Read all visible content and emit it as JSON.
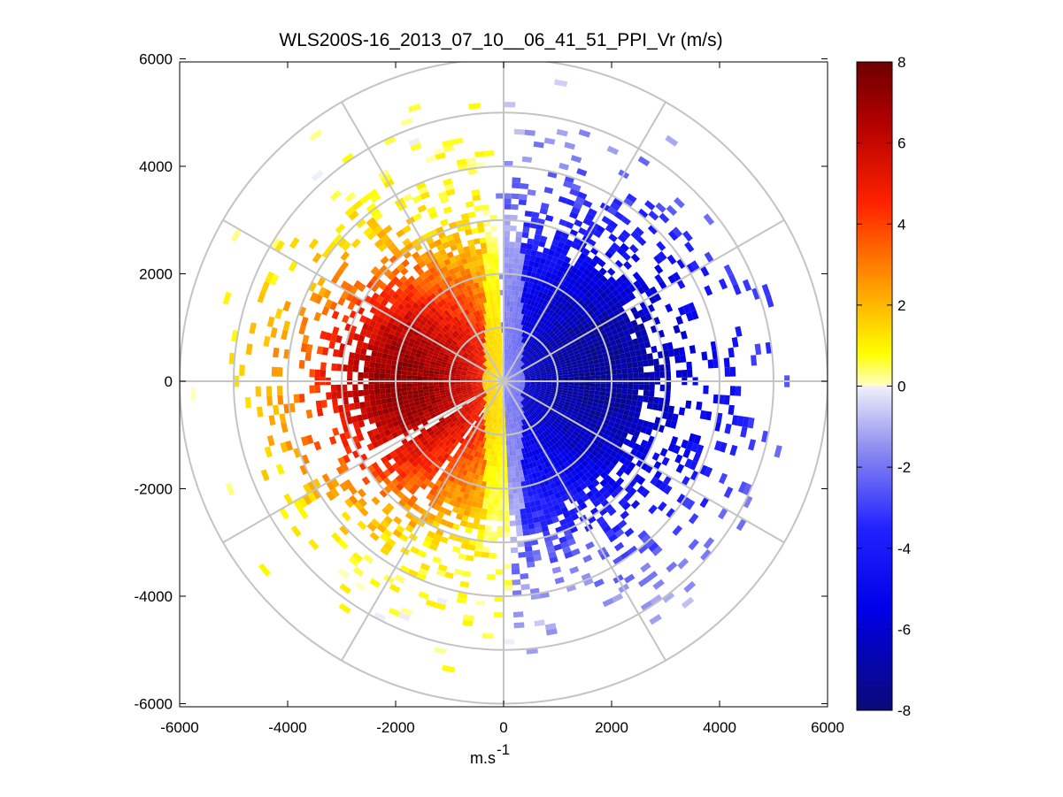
{
  "chart_data": {
    "type": "heatmap",
    "title": "WLS200S-16_2013_07_10__06_41_51_PPI_Vr (m/s)",
    "xlabel": "m.s",
    "xlabel_sup": "-1",
    "ylabel": "",
    "xlim": [
      -6000,
      6000
    ],
    "ylim": [
      -6000,
      6000
    ],
    "xticks": [
      -6000,
      -4000,
      -2000,
      0,
      2000,
      4000,
      6000
    ],
    "yticks": [
      6000,
      4000,
      2000,
      0,
      -2000,
      -4000,
      -6000
    ],
    "xtick_labels": [
      "-6000",
      "-4000",
      "-2000",
      "0",
      "2000",
      "4000",
      "6000"
    ],
    "ytick_labels": [
      "6000",
      "4000",
      "2000",
      "0",
      "-2000",
      "-4000",
      "-6000"
    ],
    "polar_grid": {
      "rings": [
        1000,
        2000,
        3000,
        4000,
        5000,
        6000
      ],
      "spokes_deg": [
        0,
        30,
        60,
        90,
        120,
        150,
        180,
        210,
        240,
        270,
        300,
        330
      ]
    },
    "field": {
      "description": "PPI scan of radial velocity Vr (m/s)",
      "positive_core": {
        "x": -1800,
        "y": 0,
        "peak": 7.0
      },
      "negative_core": {
        "x": 1800,
        "y": 200,
        "peak": -7.0
      },
      "max_range": 5800
    },
    "colorbar": {
      "min": -8,
      "max": 8,
      "ticks": [
        8,
        6,
        4,
        2,
        0,
        -2,
        -4,
        -6,
        -8
      ],
      "tick_labels": [
        "8",
        "6",
        "4",
        "2",
        "0",
        "-2",
        "-4",
        "-6",
        "-8"
      ],
      "colormap_stops": [
        {
          "v": -8.0,
          "color": "#0a0a78"
        },
        {
          "v": -5.5,
          "color": "#0000e8"
        },
        {
          "v": -3.5,
          "color": "#2222ff"
        },
        {
          "v": -1.5,
          "color": "#9090f0"
        },
        {
          "v": 0.0,
          "color": "#f0f0fb"
        },
        {
          "v": 0.0,
          "color": "#ffffc8"
        },
        {
          "v": 0.8,
          "color": "#ffff00"
        },
        {
          "v": 2.5,
          "color": "#ff9a00"
        },
        {
          "v": 4.5,
          "color": "#ff2200"
        },
        {
          "v": 6.5,
          "color": "#b20000"
        },
        {
          "v": 8.0,
          "color": "#6e0000"
        }
      ]
    }
  }
}
